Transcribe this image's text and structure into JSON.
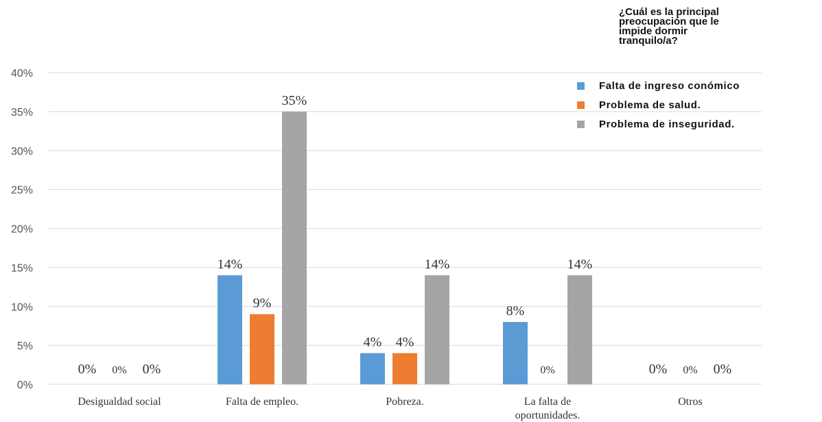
{
  "chart_data": {
    "type": "bar",
    "title": "¿Cuál es la principal preocupación que le impide dormir tranquilo/a?",
    "title_lines": [
      "¿Cuál es la principal",
      "preocupación que le",
      "impide dormir",
      "tranquilo/a?"
    ],
    "categories": [
      "Desigualdad social",
      "Falta de empleo.",
      "Pobreza.",
      "La falta de oportunidades.",
      "Otros"
    ],
    "category_lines": [
      [
        "Desigualdad social"
      ],
      [
        "Falta de empleo."
      ],
      [
        "Pobreza."
      ],
      [
        "La falta de",
        "oportunidades."
      ],
      [
        "Otros"
      ]
    ],
    "series": [
      {
        "name": "Falta de ingreso conómico",
        "color": "#5B9BD5",
        "values": [
          0,
          14,
          4,
          8,
          0
        ],
        "labels": [
          "0%",
          "14%",
          "4%",
          "8%",
          "0%"
        ]
      },
      {
        "name": "Problema de salud.",
        "color": "#ED7D31",
        "values": [
          0,
          9,
          4,
          0,
          0
        ],
        "labels": [
          "0%",
          "9%",
          "4%",
          "0%",
          "0%"
        ]
      },
      {
        "name": "Problema de inseguridad.",
        "color": "#A5A5A5",
        "values": [
          0,
          35,
          14,
          14,
          0
        ],
        "labels": [
          "0%",
          "35%",
          "14%",
          "14%",
          "0%"
        ]
      }
    ],
    "y_ticks": [
      "0%",
      "5%",
      "10%",
      "15%",
      "20%",
      "25%",
      "30%",
      "35%",
      "40%"
    ],
    "ylim": [
      0,
      40
    ],
    "xlabel": "",
    "ylabel": "",
    "grid": true,
    "legend_position": "top-right"
  }
}
